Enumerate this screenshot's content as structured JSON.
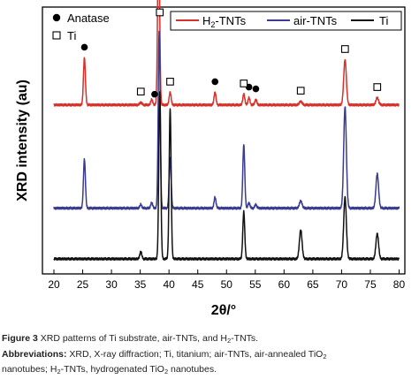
{
  "chart_data": {
    "type": "line",
    "xlabel": "2θ/°",
    "ylabel": "XRD intensity (au)",
    "xlim": [
      18,
      81
    ],
    "x_ticks": [
      20,
      25,
      30,
      35,
      40,
      45,
      50,
      55,
      60,
      65,
      70,
      75,
      80
    ],
    "y_ticks_shown": false,
    "grid": false,
    "series": [
      {
        "name": "H2-TNTs",
        "legend_label": "H",
        "legend_sub": "2",
        "legend_suffix": "-TNTs",
        "color": "#d9302a",
        "baseline": 0.85,
        "peaks": [
          {
            "x": 25.3,
            "h": 0.26
          },
          {
            "x": 35.1,
            "h": 0.015
          },
          {
            "x": 37.0,
            "h": 0.03
          },
          {
            "x": 38.2,
            "h": 1.0
          },
          {
            "x": 40.2,
            "h": 0.07
          },
          {
            "x": 48.0,
            "h": 0.07
          },
          {
            "x": 53.0,
            "h": 0.06
          },
          {
            "x": 53.9,
            "h": 0.04
          },
          {
            "x": 55.1,
            "h": 0.03
          },
          {
            "x": 62.9,
            "h": 0.02
          },
          {
            "x": 70.6,
            "h": 0.25
          },
          {
            "x": 76.2,
            "h": 0.04
          }
        ]
      },
      {
        "name": "air-TNTs",
        "legend_label": "air-TNTs",
        "legend_sub": "",
        "legend_suffix": "",
        "color": "#3a3c8f",
        "baseline": 0.28,
        "peaks": [
          {
            "x": 25.3,
            "h": 0.27
          },
          {
            "x": 35.1,
            "h": 0.02
          },
          {
            "x": 37.0,
            "h": 0.03
          },
          {
            "x": 38.3,
            "h": 0.98
          },
          {
            "x": 40.2,
            "h": 0.28
          },
          {
            "x": 48.0,
            "h": 0.06
          },
          {
            "x": 53.0,
            "h": 0.35
          },
          {
            "x": 53.9,
            "h": 0.03
          },
          {
            "x": 55.1,
            "h": 0.02
          },
          {
            "x": 62.9,
            "h": 0.04
          },
          {
            "x": 70.6,
            "h": 0.56
          },
          {
            "x": 76.2,
            "h": 0.19
          }
        ]
      },
      {
        "name": "Ti",
        "legend_label": "Ti",
        "legend_sub": "",
        "legend_suffix": "",
        "color": "#111111",
        "baseline": 0.0,
        "peaks": [
          {
            "x": 35.1,
            "h": 0.04
          },
          {
            "x": 38.4,
            "h": 0.92
          },
          {
            "x": 40.2,
            "h": 0.83
          },
          {
            "x": 53.0,
            "h": 0.26
          },
          {
            "x": 62.9,
            "h": 0.16
          },
          {
            "x": 70.6,
            "h": 0.34
          },
          {
            "x": 76.2,
            "h": 0.14
          }
        ]
      }
    ],
    "markers": [
      {
        "kind": "anatase",
        "x": 25.3
      },
      {
        "kind": "anatase",
        "x": 37.5
      },
      {
        "kind": "anatase",
        "x": 48.0
      },
      {
        "kind": "anatase",
        "x": 53.9
      },
      {
        "kind": "anatase",
        "x": 55.1
      },
      {
        "kind": "ti",
        "x": 35.1
      },
      {
        "kind": "ti",
        "x": 38.4
      },
      {
        "kind": "ti",
        "x": 40.2
      },
      {
        "kind": "ti",
        "x": 53.0
      },
      {
        "kind": "ti",
        "x": 62.9
      },
      {
        "kind": "ti",
        "x": 70.6
      },
      {
        "kind": "ti",
        "x": 76.2
      }
    ],
    "marker_legend": [
      {
        "kind": "anatase",
        "label": "Anatase"
      },
      {
        "kind": "ti",
        "label": "Ti"
      }
    ]
  },
  "caption": {
    "figure_label": "Figure 3",
    "text_before_sub": " XRD patterns of Ti substrate, air-TNTs, and H",
    "text_sub": "2",
    "text_after_sub": "-TNTs.",
    "abbrev_label": "Abbreviations:",
    "abbrev_1": " XRD, X-ray diffraction; Ti, titanium; air-TNTs, air-annealed TiO",
    "abbrev_1_sub": "2",
    "abbrev_2": "nanotubes; H",
    "abbrev_2_sub": "2",
    "abbrev_3": "-TNTs, hydrogenated TiO",
    "abbrev_3_sub": "2",
    "abbrev_4": " nanotubes."
  }
}
